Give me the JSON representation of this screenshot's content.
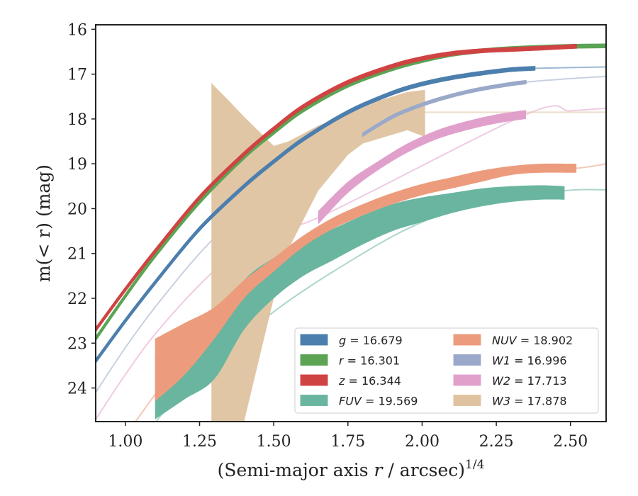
{
  "chart_data": {
    "type": "line",
    "title": "",
    "xlabel_main": "(Semi-major axis ",
    "xlabel_var": "r",
    "xlabel_tail": " / arcsec)",
    "xlabel_sup": "1/4",
    "ylabel_main": "m(< r) (mag)",
    "xlim": [
      0.9,
      2.62
    ],
    "ylim": [
      24.75,
      15.9
    ],
    "y_inverted": true,
    "xticks": [
      1.0,
      1.25,
      1.5,
      1.75,
      2.0,
      2.25,
      2.5
    ],
    "xtick_labels": [
      "1.00",
      "1.25",
      "1.50",
      "1.75",
      "2.00",
      "2.25",
      "2.50"
    ],
    "yticks": [
      16,
      17,
      18,
      19,
      20,
      21,
      22,
      23,
      24
    ],
    "ytick_labels": [
      "16",
      "17",
      "18",
      "19",
      "20",
      "21",
      "22",
      "23",
      "24"
    ],
    "grid": false,
    "legend_position": "lower-right",
    "series": [
      {
        "name": "g = 16.679",
        "var": "g",
        "value": "16.679",
        "color": "#4c7fad",
        "solid_x": [
          0.9,
          1.0,
          1.1,
          1.25,
          1.4,
          1.5,
          1.6,
          1.75,
          1.9,
          2.0,
          2.1,
          2.2,
          2.3,
          2.38
        ],
        "solid_y": [
          23.4,
          22.5,
          21.65,
          20.45,
          19.5,
          18.95,
          18.45,
          17.85,
          17.42,
          17.22,
          17.08,
          16.98,
          16.9,
          16.87
        ],
        "solid_width": 0.08,
        "ext_x": [
          2.38,
          2.62
        ],
        "ext_y": [
          16.87,
          16.84
        ]
      },
      {
        "name": "r = 16.301",
        "var": "r",
        "value": "16.301",
        "color": "#5aa454",
        "solid_x": [
          0.9,
          1.0,
          1.1,
          1.25,
          1.4,
          1.5,
          1.6,
          1.75,
          1.9,
          2.0,
          2.1,
          2.2,
          2.3,
          2.4,
          2.5,
          2.62
        ],
        "solid_y": [
          22.9,
          21.95,
          21.05,
          19.85,
          18.85,
          18.3,
          17.8,
          17.25,
          16.88,
          16.7,
          16.56,
          16.48,
          16.43,
          16.4,
          16.38,
          16.37
        ],
        "solid_width": 0.08,
        "ext_x": [],
        "ext_y": []
      },
      {
        "name": "z = 16.344",
        "var": "z",
        "value": "16.344",
        "color": "#d04343",
        "solid_x": [
          0.9,
          1.0,
          1.1,
          1.25,
          1.4,
          1.5,
          1.6,
          1.75,
          1.9,
          2.0,
          2.1,
          2.2,
          2.3,
          2.4,
          2.52
        ],
        "solid_y": [
          22.7,
          21.8,
          20.95,
          19.75,
          18.78,
          18.22,
          17.72,
          17.18,
          16.82,
          16.65,
          16.54,
          16.48,
          16.45,
          16.42,
          16.38
        ],
        "solid_width": 0.08,
        "ext_x": [
          2.52,
          2.62
        ],
        "ext_y": [
          16.38,
          16.36
        ]
      },
      {
        "name": "FUV = 19.569",
        "var": "FUV",
        "value": "19.569",
        "color": "#6ab5a0",
        "band_x": [
          1.1,
          1.2,
          1.3,
          1.4,
          1.5,
          1.6,
          1.7,
          1.8,
          1.9,
          2.0,
          2.1,
          2.2,
          2.3,
          2.4,
          2.48
        ],
        "band_lo": [
          23.25,
          22.95,
          22.6,
          21.6,
          21.1,
          20.75,
          20.45,
          20.15,
          19.9,
          19.75,
          19.65,
          19.55,
          19.5,
          19.48,
          19.5
        ],
        "band_hi": [
          24.7,
          24.25,
          23.8,
          22.7,
          22.0,
          21.5,
          21.15,
          20.8,
          20.5,
          20.3,
          20.1,
          19.95,
          19.85,
          19.8,
          19.8
        ],
        "ext_x": [
          0.9,
          1.2,
          1.5,
          1.8,
          2.0,
          2.2,
          2.48,
          2.62
        ],
        "ext_y": [
          26.5,
          24.0,
          22.3,
          21.0,
          20.3,
          19.85,
          19.6,
          19.58
        ]
      },
      {
        "name": "NUV = 18.902",
        "var": "NUV",
        "value": "18.902",
        "color": "#ec9c7c",
        "band_x": [
          1.1,
          1.2,
          1.3,
          1.4,
          1.5,
          1.6,
          1.7,
          1.8,
          1.9,
          2.0,
          2.1,
          2.2,
          2.3,
          2.4,
          2.52
        ],
        "band_lo": [
          22.9,
          22.55,
          22.2,
          21.6,
          21.1,
          20.6,
          20.2,
          19.9,
          19.65,
          19.45,
          19.3,
          19.15,
          19.05,
          19.0,
          19.0
        ],
        "band_hi": [
          24.3,
          23.7,
          22.9,
          22.0,
          21.4,
          20.85,
          20.45,
          20.15,
          19.9,
          19.7,
          19.55,
          19.4,
          19.25,
          19.2,
          19.2
        ],
        "ext_x": [
          0.9,
          1.2,
          1.5,
          1.8,
          2.0,
          2.2,
          2.52,
          2.62
        ],
        "ext_y": [
          26.0,
          23.3,
          21.3,
          20.0,
          19.6,
          19.3,
          19.1,
          19.0
        ]
      },
      {
        "name": "W1 = 16.996",
        "var": "W1",
        "value": "16.996",
        "color": "#9aa9c9",
        "solid_x": [
          1.8,
          1.9,
          2.0,
          2.1,
          2.2,
          2.3,
          2.35
        ],
        "solid_y": [
          18.35,
          17.95,
          17.68,
          17.48,
          17.33,
          17.22,
          17.18
        ],
        "solid_width": 0.07,
        "ext_x": [
          0.9,
          1.0,
          1.1,
          1.25,
          1.4,
          1.5,
          1.6,
          1.8,
          2.0,
          2.2,
          2.35,
          2.5,
          2.62
        ],
        "ext_y": [
          24.1,
          23.1,
          22.2,
          21.0,
          20.0,
          19.45,
          18.95,
          18.35,
          17.68,
          17.33,
          17.18,
          17.1,
          17.05
        ]
      },
      {
        "name": "W2 = 17.713",
        "var": "W2",
        "value": "17.713",
        "color": "#e1a0cc",
        "band_x": [
          1.65,
          1.75,
          1.85,
          1.95,
          2.05,
          2.15,
          2.25,
          2.35
        ],
        "band_lo": [
          20.05,
          19.4,
          18.95,
          18.55,
          18.25,
          18.05,
          17.9,
          17.8
        ],
        "band_hi": [
          20.35,
          19.65,
          19.15,
          18.75,
          18.45,
          18.25,
          18.1,
          18.0
        ],
        "ext_x": [
          0.9,
          1.0,
          1.1,
          1.25,
          1.4,
          1.5,
          1.65,
          2.35,
          2.5,
          2.62
        ],
        "ext_y": [
          24.7,
          23.7,
          22.8,
          21.7,
          20.8,
          20.4,
          20.2,
          17.9,
          17.82,
          17.76
        ]
      },
      {
        "name": "W3 = 17.878",
        "var": "W3",
        "value": "17.878",
        "color": "#dfc3a0",
        "band_x": [
          1.29,
          1.35,
          1.4,
          1.5,
          1.55,
          1.65,
          1.75,
          1.8,
          1.85,
          1.95,
          2.01
        ],
        "band_lo": [
          17.2,
          17.6,
          17.95,
          18.6,
          18.5,
          18.15,
          17.9,
          17.75,
          17.6,
          17.4,
          17.35
        ],
        "band_hi": [
          25.5,
          25.5,
          24.75,
          22.0,
          20.9,
          19.6,
          18.8,
          18.55,
          18.45,
          18.25,
          18.4
        ],
        "ext_x": [
          2.01,
          2.62
        ],
        "ext_y": [
          17.85,
          17.85
        ]
      }
    ]
  }
}
